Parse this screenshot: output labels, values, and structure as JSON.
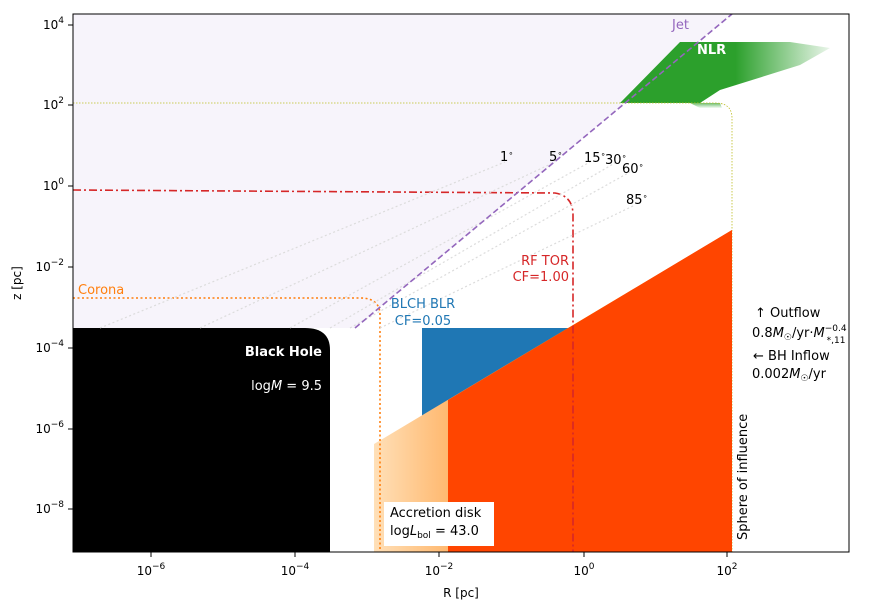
{
  "colors": {
    "jet": "#9467bd",
    "nlr": "#2ca02c",
    "torus": "#d62728",
    "blr": "#1f77b4",
    "corona": "#ff7f0e",
    "disk": "#ff4500",
    "black_hole": "#000000"
  },
  "chart_data": {
    "type": "area",
    "xlabel": "R [pc]",
    "ylabel": "z [pc]",
    "x_scale": "log",
    "y_scale": "log",
    "xlim": [
      1e-07,
      5000
    ],
    "ylim": [
      1e-09,
      20000
    ],
    "x_ticks": [
      "10^-6",
      "10^-4",
      "10^-2",
      "10^0",
      "10^2"
    ],
    "y_ticks": [
      "10^-8",
      "10^-6",
      "10^-4",
      "10^-2",
      "10^0",
      "10^2",
      "10^4"
    ],
    "regions": [
      {
        "name": "Black Hole",
        "R_max": 0.00026,
        "z_max": 0.0003,
        "annotation": "logM = 9.5"
      },
      {
        "name": "Corona",
        "R_max": 0.0013,
        "z_max": 0.0015
      },
      {
        "name": "RF TOR",
        "annotation": "CF=1.00",
        "R_max": 0.75,
        "z": 0.7
      },
      {
        "name": "BLCH BLR",
        "annotation": "CF=0.05",
        "R_min": 0.006,
        "R_max": 0.75,
        "z_max": 0.0003
      },
      {
        "name": "Accretion disk",
        "annotation": "logL_bol = 43.0",
        "R_min": 0.0013,
        "R_max": 110
      },
      {
        "name": "NLR",
        "R_min": 3,
        "R_max": 2000,
        "z_min": 100,
        "z_max": 3000
      },
      {
        "name": "Jet"
      },
      {
        "name": "Sphere of influence",
        "R": 110,
        "z": 130
      }
    ],
    "angles": [
      "1°",
      "5°",
      "15°",
      "30°",
      "60°",
      "85°"
    ],
    "flows": {
      "outflow_label": "↑ Outflow",
      "outflow_rate": "0.8M☉/yr·M*,11^-0.4",
      "inflow_label": "← BH Inflow",
      "inflow_rate": "0.002M☉/yr"
    }
  }
}
